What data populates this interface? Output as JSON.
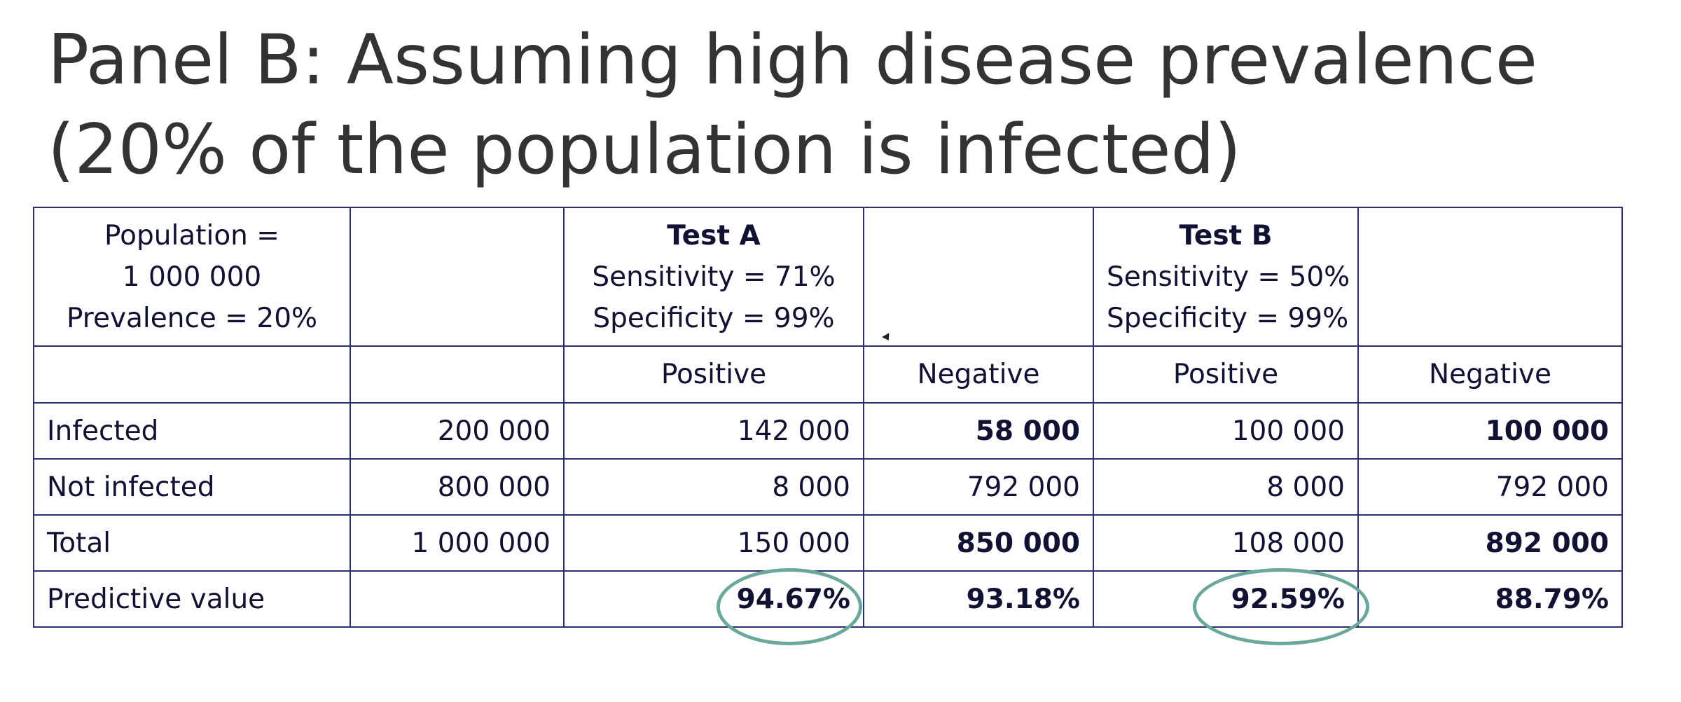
{
  "title": {
    "line1": "Panel B: Assuming high disease prevalence",
    "line2": "(20% of the population is infected)"
  },
  "table": {
    "header": {
      "population_label": "Population =",
      "population_value": "1 000 000",
      "prevalence": "Prevalence = 20%",
      "test_a": {
        "name": "Test A",
        "sensitivity": "Sensitivity = 71%",
        "specificity": "Specificity = 99%"
      },
      "test_b": {
        "name": "Test B",
        "sensitivity": "Sensitivity = 50%",
        "specificity": "Specificity = 99%"
      }
    },
    "subheader": {
      "a_positive": "Positive",
      "a_negative": "Negative",
      "b_positive": "Positive",
      "b_negative": "Negative"
    },
    "rows": [
      {
        "label": "Infected",
        "count": "200 000",
        "a_pos": "142 000",
        "a_neg": "58 000",
        "b_pos": "100 000",
        "b_neg": "100 000"
      },
      {
        "label": "Not infected",
        "count": "800 000",
        "a_pos": "8 000",
        "a_neg": "792 000",
        "b_pos": "8 000",
        "b_neg": "792 000"
      },
      {
        "label": "Total",
        "count": "1 000 000",
        "a_pos": "150 000",
        "a_neg": "850 000",
        "b_pos": "108 000",
        "b_neg": "892 000"
      },
      {
        "label": "Predictive value",
        "count": "",
        "a_pos": "94.67%",
        "a_neg": "93.18%",
        "b_pos": "92.59%",
        "b_neg": "88.79%"
      }
    ]
  },
  "colors": {
    "border": "#2b2f6e",
    "text": "#111133",
    "title": "#333333",
    "highlight_circle": "#6aa89c"
  }
}
